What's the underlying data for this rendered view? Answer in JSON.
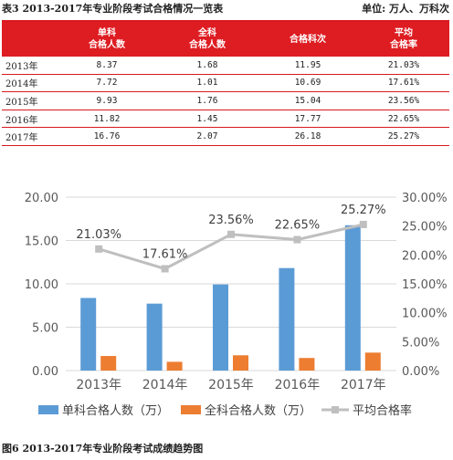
{
  "table": {
    "title": "表3  2013-2017年专业阶段考试合格情况一览表",
    "unit": "单位: 万人、万科次",
    "headers": [
      "",
      "单科\n合格人数",
      "全科\n合格人数",
      "合格科次",
      "平均\n合格率"
    ],
    "rows": [
      {
        "year": "2013年",
        "single": "8.37",
        "full": "1.68",
        "count": "11.95",
        "rate": "21.03%"
      },
      {
        "year": "2014年",
        "single": "7.72",
        "full": "1.01",
        "count": "10.69",
        "rate": "17.61%"
      },
      {
        "year": "2015年",
        "single": "9.93",
        "full": "1.76",
        "count": "15.04",
        "rate": "23.56%"
      },
      {
        "year": "2016年",
        "single": "11.82",
        "full": "1.45",
        "count": "17.77",
        "rate": "22.65%"
      },
      {
        "year": "2017年",
        "single": "16.76",
        "full": "2.07",
        "count": "26.18",
        "rate": "25.27%"
      }
    ]
  },
  "chart_data": {
    "type": "bar",
    "categories": [
      "2013年",
      "2014年",
      "2015年",
      "2016年",
      "2017年"
    ],
    "series": [
      {
        "name": "单科合格人数（万）",
        "kind": "bar",
        "axis": "left",
        "color": "#5b9bd5",
        "values": [
          8.37,
          7.72,
          9.93,
          11.82,
          16.76
        ]
      },
      {
        "name": "全科合格人数（万）",
        "kind": "bar",
        "axis": "left",
        "color": "#ed7d31",
        "values": [
          1.68,
          1.01,
          1.76,
          1.45,
          2.07
        ]
      },
      {
        "name": "平均合格率",
        "kind": "line",
        "axis": "right",
        "color": "#bfbfbf",
        "values": [
          21.03,
          17.61,
          23.56,
          22.65,
          25.27
        ]
      }
    ],
    "y_left": {
      "min": 0,
      "max": 20,
      "ticks": [
        "0.00",
        "5.00",
        "10.00",
        "15.00",
        "20.00"
      ]
    },
    "y_right": {
      "min": 0,
      "max": 30,
      "ticks": [
        "0.00%",
        "5.00%",
        "10.00%",
        "15.00%",
        "20.00%",
        "25.00%",
        "30.00%"
      ]
    },
    "line_labels": [
      "21.03%",
      "17.61%",
      "23.56%",
      "22.65%",
      "25.27%"
    ],
    "legend_position": "bottom",
    "grid": true
  },
  "figure_caption": "图6  2013-2017年专业阶段考试成绩趋势图"
}
